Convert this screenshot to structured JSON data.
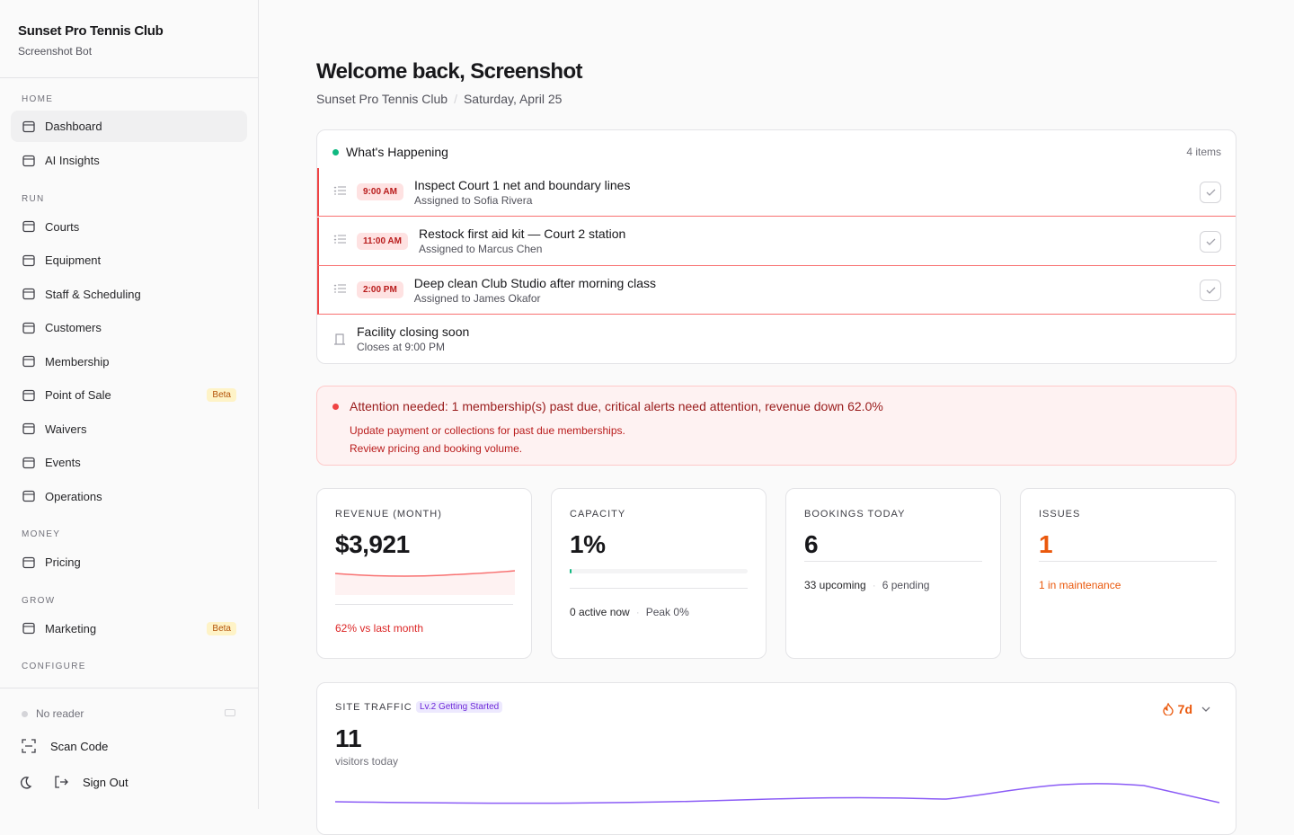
{
  "sidebar": {
    "org": "Sunset Pro Tennis Club",
    "user": "Screenshot Bot",
    "sections": [
      {
        "title": "HOME",
        "items": [
          {
            "label": "Dashboard"
          },
          {
            "label": "AI Insights"
          }
        ]
      },
      {
        "title": "RUN",
        "items": [
          {
            "label": "Courts"
          },
          {
            "label": "Equipment"
          },
          {
            "label": "Staff & Scheduling"
          },
          {
            "label": "Customers"
          },
          {
            "label": "Membership"
          },
          {
            "label": "Point of Sale",
            "badge": "Beta"
          },
          {
            "label": "Waivers"
          },
          {
            "label": "Events"
          },
          {
            "label": "Operations"
          }
        ]
      },
      {
        "title": "MONEY",
        "items": [
          {
            "label": "Pricing"
          }
        ]
      },
      {
        "title": "GROW",
        "items": [
          {
            "label": "Marketing",
            "badge": "Beta"
          }
        ]
      },
      {
        "title": "CONFIGURE",
        "items": []
      }
    ],
    "footer": {
      "reader": "No reader",
      "scan": "Scan Code",
      "signout": "Sign Out"
    }
  },
  "header": {
    "title": "Welcome back, Screenshot",
    "breadcrumb": [
      "Sunset Pro Tennis Club",
      "Saturday, April 25"
    ]
  },
  "happening": {
    "title": "What's Happening",
    "count": "4 items",
    "tasks": [
      {
        "time": "9:00 AM",
        "title": "Inspect Court 1 net and boundary lines",
        "sub": "Assigned to Sofia Rivera"
      },
      {
        "time": "11:00 AM",
        "title": "Restock first aid kit — Court 2 station",
        "sub": "Assigned to Marcus Chen"
      },
      {
        "time": "2:00 PM",
        "title": "Deep clean Club Studio after morning class",
        "sub": "Assigned to James Okafor"
      }
    ],
    "notice": {
      "title": "Facility closing soon",
      "sub": "Closes at 9:00 PM"
    }
  },
  "alert": {
    "title": "Attention needed: 1 membership(s) past due, critical alerts need attention, revenue down 62.0%",
    "lines": [
      "Update payment or collections for past due memberships.",
      "Review pricing and booking volume."
    ]
  },
  "stats": [
    {
      "label": "REVENUE (MONTH)",
      "value": "$3,921",
      "foot": [
        "62% vs last month"
      ]
    },
    {
      "label": "CAPACITY",
      "value": "1%",
      "foot": [
        "0 active now",
        "Peak 0%"
      ]
    },
    {
      "label": "BOOKINGS TODAY",
      "value": "6",
      "foot": [
        "33 upcoming",
        "6 pending"
      ]
    },
    {
      "label": "ISSUES",
      "value": "1",
      "foot": [
        "1 in maintenance"
      ]
    }
  ],
  "traffic": {
    "label": "SITE TRAFFIC",
    "badge": "Lv.2 Getting Started",
    "streak": "7d",
    "value": "11",
    "sub": "visitors today"
  }
}
